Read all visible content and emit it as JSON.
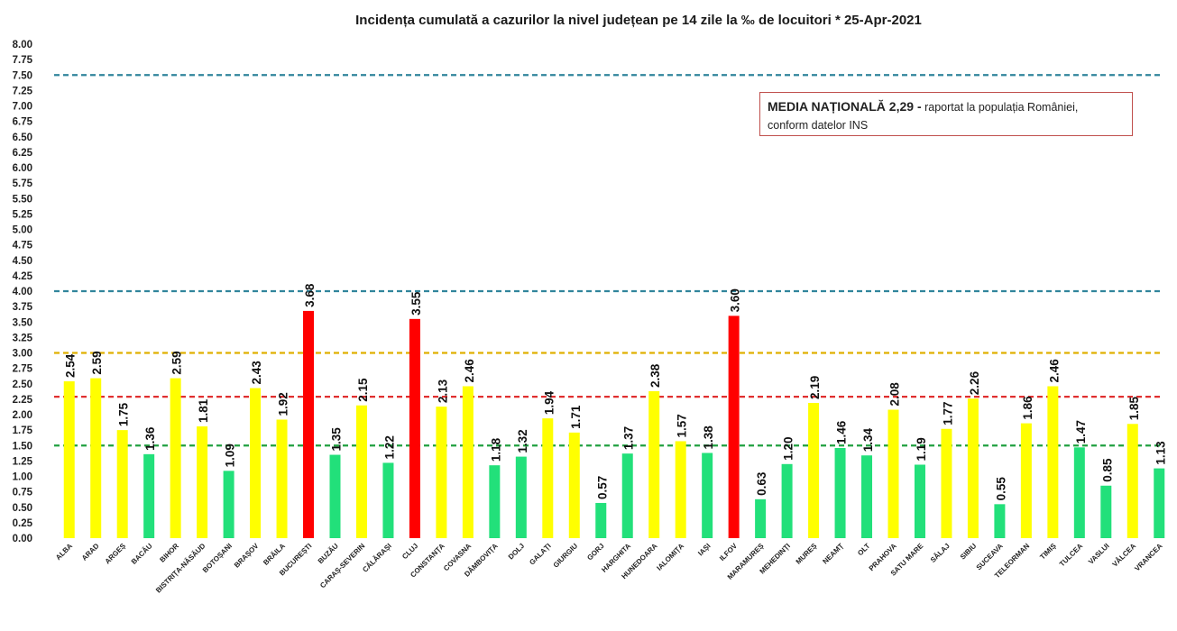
{
  "chart_data": {
    "type": "bar",
    "title": "Incidența cumulată a cazurilor la nivel județean pe 14 zile la ‰ de locuitori *   25-Apr-2021",
    "ylim": [
      0,
      8
    ],
    "yticks": [
      "0.00",
      "0.25",
      "0.50",
      "0.75",
      "1.00",
      "1.25",
      "1.50",
      "1.75",
      "2.00",
      "2.25",
      "2.50",
      "2.75",
      "3.00",
      "3.25",
      "3.50",
      "3.75",
      "4.00",
      "4.25",
      "4.50",
      "4.75",
      "5.00",
      "5.25",
      "5.50",
      "5.75",
      "6.00",
      "6.25",
      "6.50",
      "6.75",
      "7.00",
      "7.25",
      "7.50",
      "7.75",
      "8.00"
    ],
    "categories": [
      "ALBA",
      "ARAD",
      "ARGEȘ",
      "BACĂU",
      "BIHOR",
      "BISTRIȚA-NĂSĂUD",
      "BOTOȘANI",
      "BRAȘOV",
      "BRĂILA",
      "BUCUREȘTI",
      "BUZĂU",
      "CARAȘ-SEVERIN",
      "CĂLĂRAȘI",
      "CLUJ",
      "CONSTANȚA",
      "COVASNA",
      "DÂMBOVIȚA",
      "DOLJ",
      "GALAȚI",
      "GIURGIU",
      "GORJ",
      "HARGHITA",
      "HUNEDOARA",
      "IALOMIȚA",
      "IAȘI",
      "ILFOV",
      "MARAMUREȘ",
      "MEHEDINȚI",
      "MUREȘ",
      "NEAMȚ",
      "OLT",
      "PRAHOVA",
      "SATU MARE",
      "SĂLAJ",
      "SIBIU",
      "SUCEAVA",
      "TELEORMAN",
      "TIMIȘ",
      "TULCEA",
      "VASLUI",
      "VÂLCEA",
      "VRANCEA"
    ],
    "values": [
      2.54,
      2.59,
      1.75,
      1.36,
      2.59,
      1.81,
      1.09,
      2.43,
      1.92,
      3.68,
      1.35,
      2.15,
      1.22,
      3.55,
      2.13,
      2.46,
      1.18,
      1.32,
      1.94,
      1.71,
      0.57,
      1.37,
      2.38,
      1.57,
      1.38,
      3.6,
      0.63,
      1.2,
      2.19,
      1.46,
      1.34,
      2.08,
      1.19,
      1.77,
      2.26,
      0.55,
      1.86,
      2.46,
      1.47,
      0.85,
      1.85,
      1.13
    ],
    "value_labels": [
      "2.54",
      "2.59",
      "1.75",
      "1.36",
      "2.59",
      "1.81",
      "1.09",
      "2.43",
      "1.92",
      "3.68",
      "1.35",
      "2.15",
      "1.22",
      "3.55",
      "2.13",
      "2.46",
      "1.18",
      "1.32",
      "1.94",
      "1.71",
      "0.57",
      "1.37",
      "2.38",
      "1.57",
      "1.38",
      "3.60",
      "0.63",
      "1.20",
      "2.19",
      "1.46",
      "1.34",
      "2.08",
      "1.19",
      "1.77",
      "2.26",
      "0.55",
      "1.86",
      "2.46",
      "1.47",
      "0.85",
      "1.85",
      "1.13"
    ],
    "colors": {
      "green": "#22e07a",
      "yellow": "#ffff00",
      "red": "#ff0000"
    },
    "bar_colors": [
      "yellow",
      "yellow",
      "yellow",
      "green",
      "yellow",
      "yellow",
      "green",
      "yellow",
      "yellow",
      "red",
      "green",
      "yellow",
      "green",
      "red",
      "yellow",
      "yellow",
      "green",
      "green",
      "yellow",
      "yellow",
      "green",
      "green",
      "yellow",
      "yellow",
      "green",
      "red",
      "green",
      "green",
      "yellow",
      "green",
      "green",
      "yellow",
      "green",
      "yellow",
      "yellow",
      "green",
      "yellow",
      "yellow",
      "green",
      "green",
      "yellow",
      "green"
    ],
    "reference_lines": [
      {
        "value": 7.5,
        "color": "#31859c"
      },
      {
        "value": 4.0,
        "color": "#31859c"
      },
      {
        "value": 3.0,
        "color": "#e0b000"
      },
      {
        "value": 2.29,
        "color": "#e03030"
      },
      {
        "value": 1.5,
        "color": "#20a040"
      }
    ],
    "annotation": {
      "bold": "MEDIA NAȚIONALĂ  2,29 -",
      "line1": " raportat la populația României,",
      "line2": "conform datelor INS",
      "border_color": "#c0504d"
    }
  }
}
